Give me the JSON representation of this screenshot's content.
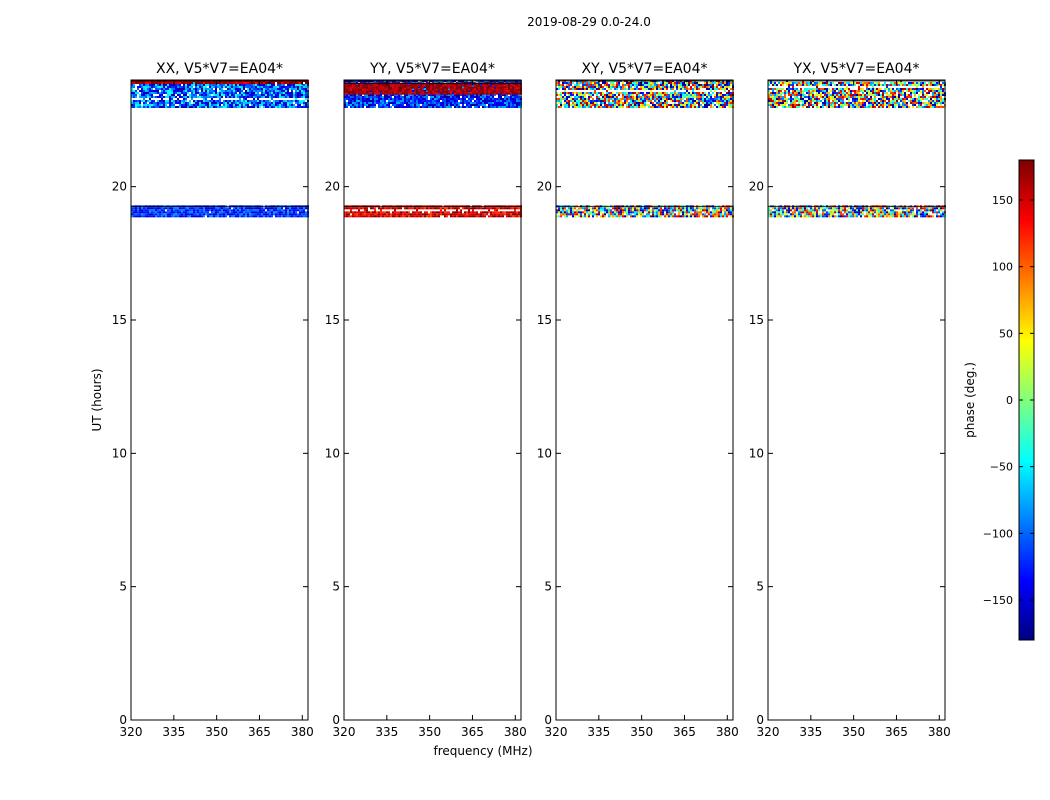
{
  "chart_data": {
    "type": "heatmap",
    "suptitle": "2019-08-29 0.0-24.0",
    "xlabel": "frequency (MHz)",
    "ylabel": "UT (hours)",
    "xlim": [
      320,
      382
    ],
    "ylim": [
      0,
      24
    ],
    "x_ticks": [
      320,
      335,
      350,
      365,
      380
    ],
    "y_ticks": [
      0,
      5,
      10,
      15,
      20
    ],
    "colorbar": {
      "label": "phase (deg.)",
      "range": [
        -180,
        180
      ],
      "ticks": [
        150,
        100,
        50,
        0,
        -50,
        -100,
        -150
      ],
      "tick_labels": [
        "150",
        "100",
        "50",
        "0",
        "−50",
        "−100",
        "−150"
      ],
      "colormap": "jet",
      "colors": [
        "#00007f",
        "#0000ff",
        "#007fff",
        "#00ffff",
        "#7fff7f",
        "#ffff00",
        "#ff7f00",
        "#ff0000",
        "#7f0000"
      ]
    },
    "panels": [
      {
        "title": "XX, V5*V7=EA04*",
        "bands": [
          {
            "ut": [
              23.0,
              24.0
            ],
            "phase_center": -100,
            "phase_spread": 70,
            "noise": 0.5
          },
          {
            "ut": [
              23.85,
              24.0
            ],
            "phase_center": 160,
            "phase_spread": 30,
            "noise": 0.3
          },
          {
            "ut": [
              18.85,
              19.3
            ],
            "phase_center": -120,
            "phase_spread": 40,
            "noise": 0.35
          }
        ]
      },
      {
        "title": "YY, V5*V7=EA04*",
        "bands": [
          {
            "ut": [
              23.0,
              24.0
            ],
            "phase_center": -120,
            "phase_spread": 50,
            "noise": 0.4
          },
          {
            "ut": [
              23.5,
              23.9
            ],
            "phase_center": 165,
            "phase_spread": 25,
            "noise": 0.3
          },
          {
            "ut": [
              18.85,
              19.3
            ],
            "phase_center": 150,
            "phase_spread": 40,
            "noise": 0.4
          }
        ]
      },
      {
        "title": "XY, V5*V7=EA04*",
        "bands": [
          {
            "ut": [
              23.0,
              24.0
            ],
            "phase_center": 0,
            "phase_spread": 180,
            "noise": 1.0
          },
          {
            "ut": [
              18.85,
              19.3
            ],
            "phase_center": 0,
            "phase_spread": 180,
            "noise": 1.0
          }
        ]
      },
      {
        "title": "YX, V5*V7=EA04*",
        "bands": [
          {
            "ut": [
              23.0,
              24.0
            ],
            "phase_center": 0,
            "phase_spread": 180,
            "noise": 1.0
          },
          {
            "ut": [
              18.85,
              19.3
            ],
            "phase_center": 0,
            "phase_spread": 180,
            "noise": 1.0
          }
        ]
      }
    ]
  }
}
